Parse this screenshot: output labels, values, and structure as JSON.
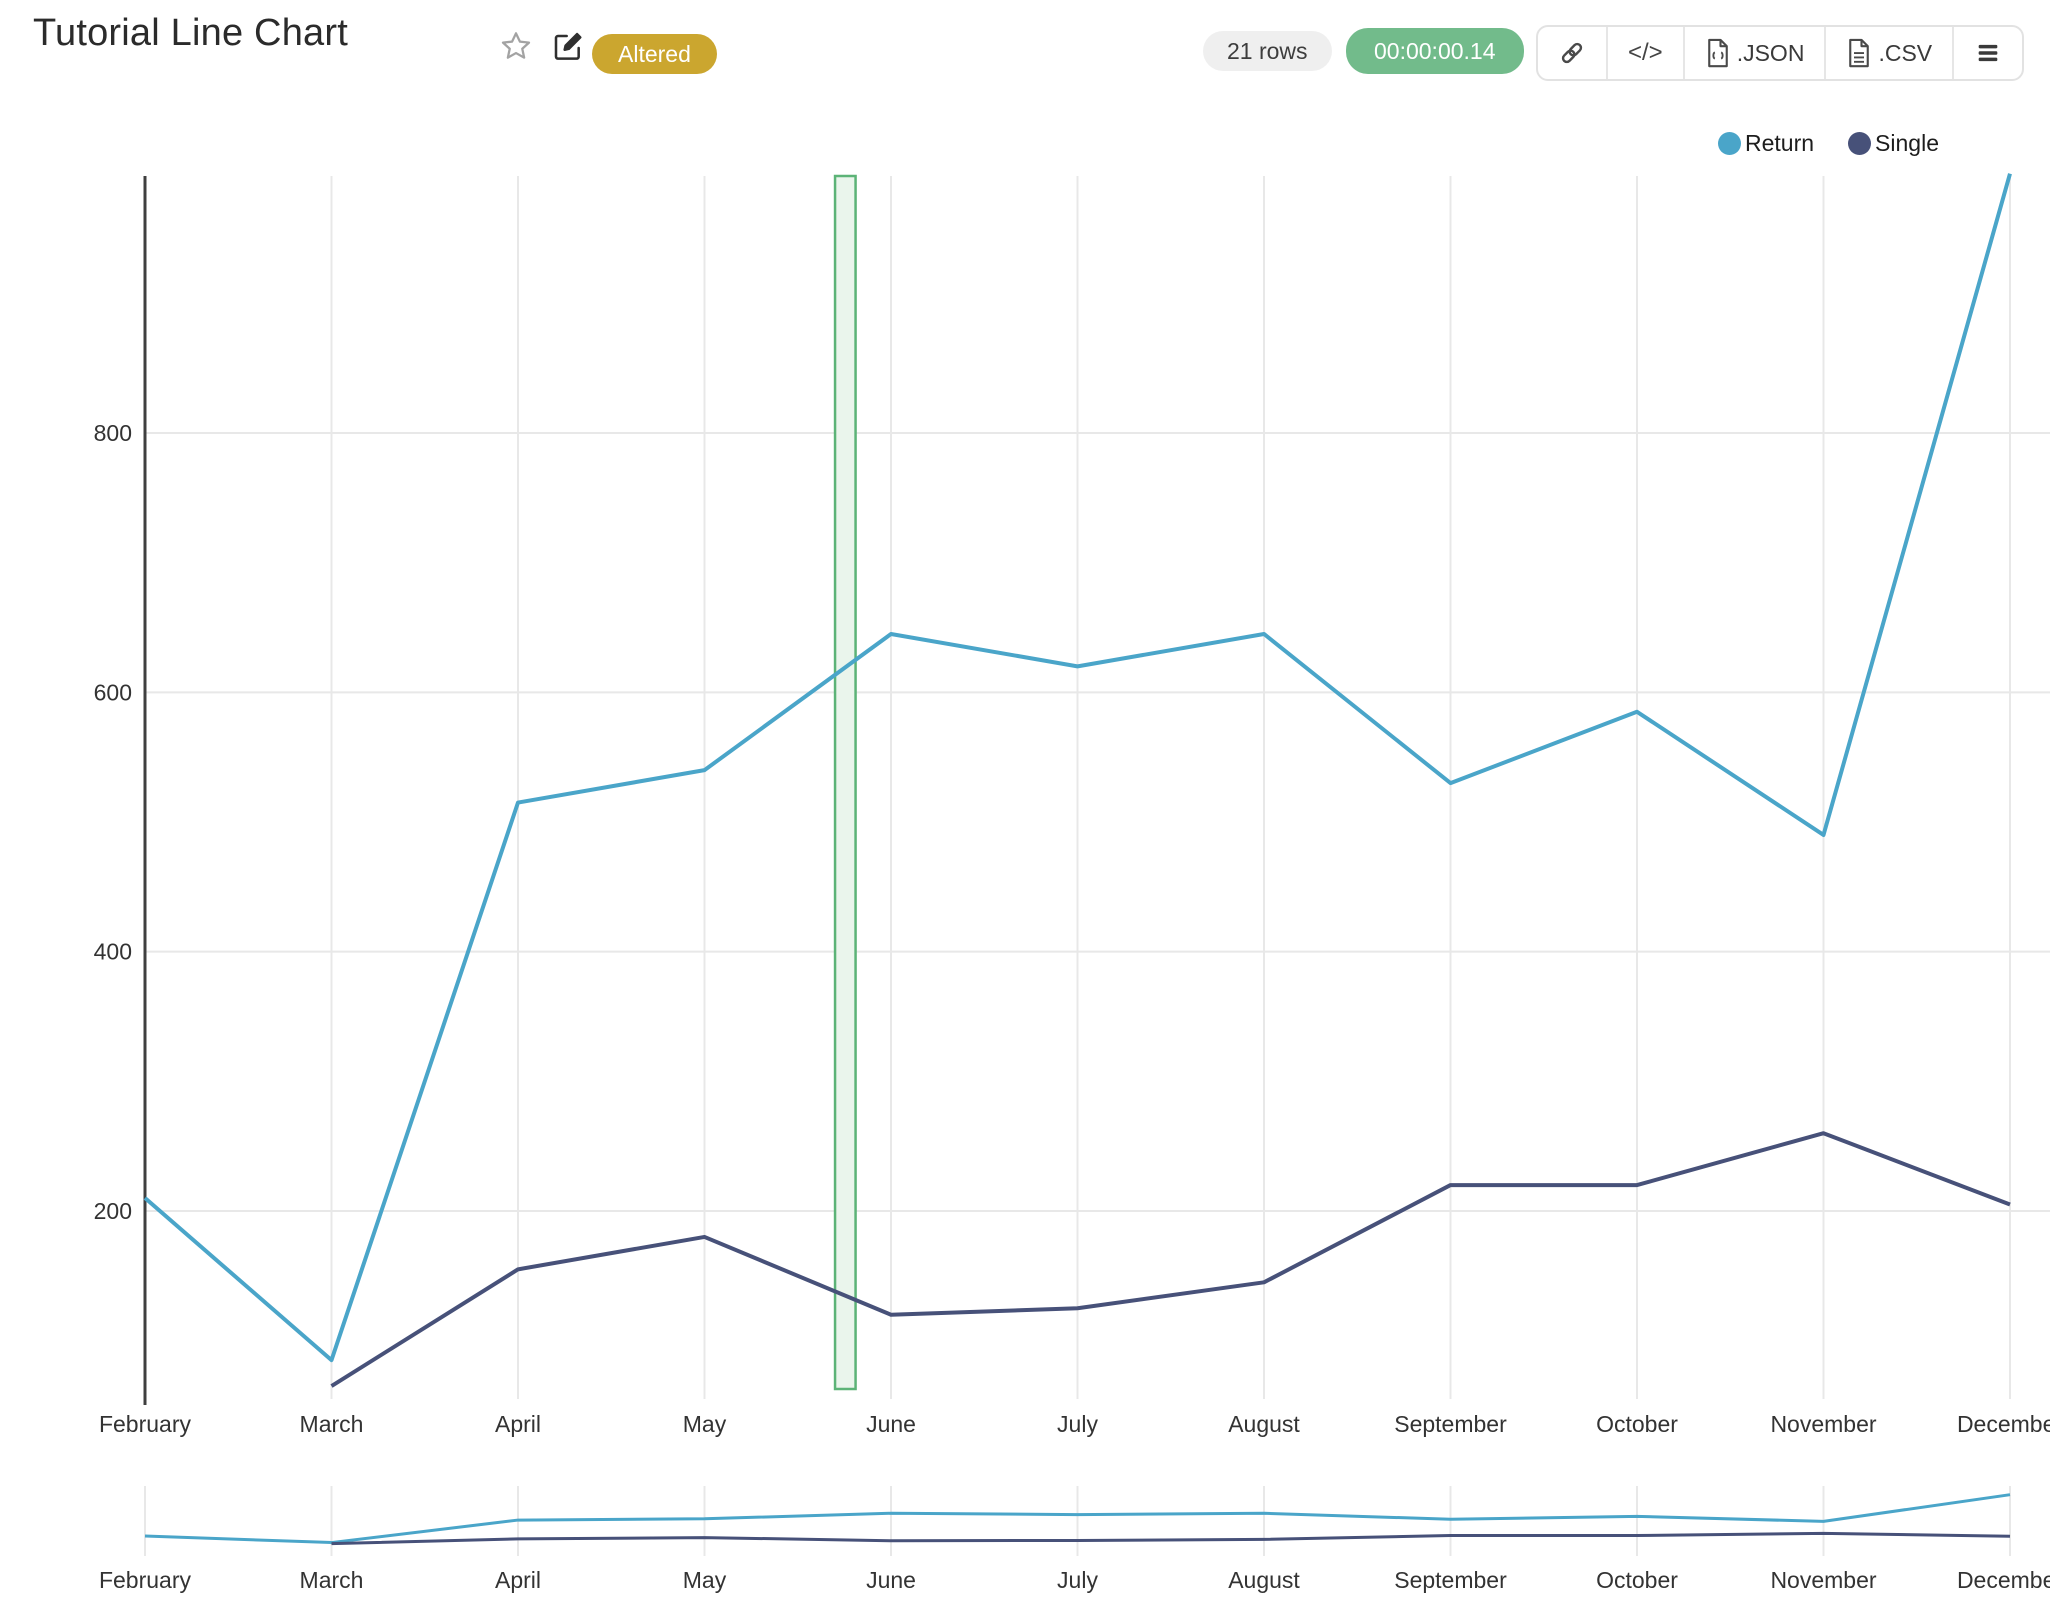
{
  "header": {
    "title": "Tutorial Line Chart",
    "status_badge": "Altered",
    "badge_color": "#CBA62F",
    "rows_count": "21 rows",
    "execution_time": "00:00:00.14",
    "timer_color": "#72BB8B",
    "code_glyph": "</>",
    "export_json": ".JSON",
    "export_csv": ".CSV"
  },
  "chart_data": {
    "type": "line",
    "title": "Tutorial Line Chart",
    "categories": [
      "February",
      "March",
      "April",
      "May",
      "June",
      "July",
      "August",
      "September",
      "October",
      "November",
      "December"
    ],
    "series": [
      {
        "name": "Return",
        "color": "#4AA5C9",
        "values": [
          210,
          85,
          515,
          540,
          645,
          620,
          645,
          530,
          585,
          490,
          1000
        ]
      },
      {
        "name": "Single",
        "color": "#475179",
        "values": [
          null,
          65,
          155,
          180,
          120,
          125,
          145,
          220,
          220,
          260,
          205
        ]
      }
    ],
    "yticks": [
      200,
      400,
      600,
      800
    ],
    "ylim": [
      55,
      1000
    ],
    "grid": true,
    "legend_position": "top-right",
    "highlight_band": {
      "between": [
        "May",
        "June"
      ],
      "fractions": [
        0.7,
        0.81
      ],
      "stroke": "#5CB377",
      "fill": "#EAF5EC"
    },
    "range_selector": true
  }
}
